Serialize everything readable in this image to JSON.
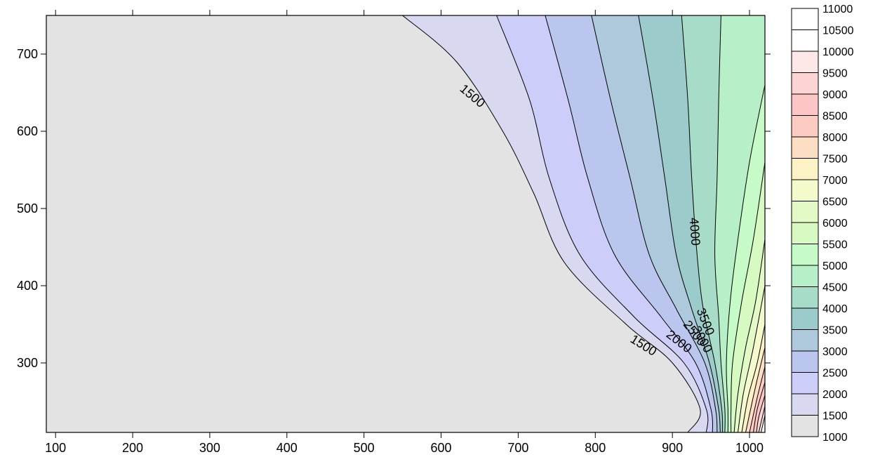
{
  "chart_data": {
    "type": "contour",
    "xlim": [
      88,
      1020
    ],
    "ylim": [
      210,
      750
    ],
    "x_ticks": [
      100,
      200,
      300,
      400,
      500,
      600,
      700,
      800,
      900,
      1000
    ],
    "y_ticks": [
      300,
      400,
      500,
      600,
      700
    ],
    "levels": [
      1000,
      1500,
      2000,
      2500,
      3000,
      3500,
      4000,
      4500,
      5000,
      5500,
      6000,
      6500,
      7000,
      7500,
      8000,
      8500,
      9000,
      9500,
      10000,
      10500,
      11000
    ],
    "level_colors": [
      "#e3e3e3",
      "#d8d8f0",
      "#cdcdfa",
      "#bac6ee",
      "#aec8dc",
      "#9ccbcb",
      "#a6dcc8",
      "#b6efc8",
      "#c6fac6",
      "#d7fac2",
      "#e3fac6",
      "#f5facd",
      "#fcf2c6",
      "#fcdec4",
      "#fccbc2",
      "#fcc6c6",
      "#fcd4d4",
      "#fde7e7",
      "#ffffff"
    ],
    "contour_lines": [
      {
        "value": 1500,
        "points": [
          [
            550,
            750
          ],
          [
            620,
            690
          ],
          [
            680,
            600
          ],
          [
            720,
            520
          ],
          [
            760,
            430
          ],
          [
            840,
            350
          ],
          [
            900,
            300
          ],
          [
            936,
            240
          ],
          [
            920,
            210
          ]
        ]
      },
      {
        "value": 2000,
        "points": [
          [
            672,
            750
          ],
          [
            715,
            640
          ],
          [
            740,
            540
          ],
          [
            780,
            440
          ],
          [
            850,
            360
          ],
          [
            915,
            300
          ],
          [
            944,
            240
          ],
          [
            944,
            210
          ]
        ]
      },
      {
        "value": 2500,
        "points": [
          [
            735,
            750
          ],
          [
            765,
            640
          ],
          [
            790,
            540
          ],
          [
            825,
            440
          ],
          [
            885,
            360
          ],
          [
            930,
            300
          ],
          [
            950,
            240
          ],
          [
            952,
            210
          ]
        ]
      },
      {
        "value": 3000,
        "points": [
          [
            795,
            750
          ],
          [
            820,
            640
          ],
          [
            845,
            540
          ],
          [
            870,
            440
          ],
          [
            905,
            370
          ],
          [
            942,
            300
          ],
          [
            956,
            240
          ],
          [
            958,
            210
          ]
        ]
      },
      {
        "value": 3500,
        "points": [
          [
            856,
            750
          ],
          [
            875,
            640
          ],
          [
            890,
            540
          ],
          [
            905,
            440
          ],
          [
            925,
            370
          ],
          [
            948,
            300
          ],
          [
            960,
            240
          ],
          [
            962,
            210
          ]
        ]
      },
      {
        "value": 4000,
        "points": [
          [
            912,
            750
          ],
          [
            920,
            640
          ],
          [
            925,
            540
          ],
          [
            932,
            440
          ],
          [
            940,
            370
          ],
          [
            955,
            300
          ],
          [
            964,
            240
          ],
          [
            965,
            210
          ]
        ]
      },
      {
        "value": 4500,
        "points": [
          [
            963,
            750
          ],
          [
            960,
            640
          ],
          [
            958,
            540
          ],
          [
            955,
            440
          ],
          [
            960,
            360
          ],
          [
            963,
            300
          ],
          [
            968,
            240
          ],
          [
            968,
            210
          ]
        ]
      },
      {
        "value": 5000,
        "points": [
          [
            1020,
            660
          ],
          [
            1000,
            560
          ],
          [
            985,
            460
          ],
          [
            975,
            380
          ],
          [
            970,
            300
          ],
          [
            972,
            240
          ],
          [
            972,
            210
          ]
        ]
      },
      {
        "value": 5500,
        "points": [
          [
            1020,
            560
          ],
          [
            1005,
            460
          ],
          [
            990,
            380
          ],
          [
            978,
            300
          ],
          [
            976,
            240
          ],
          [
            976,
            210
          ]
        ]
      },
      {
        "value": 6000,
        "points": [
          [
            1020,
            460
          ],
          [
            1008,
            380
          ],
          [
            995,
            320
          ],
          [
            985,
            260
          ],
          [
            980,
            210
          ]
        ]
      },
      {
        "value": 6500,
        "points": [
          [
            1020,
            400
          ],
          [
            1005,
            320
          ],
          [
            992,
            260
          ],
          [
            985,
            210
          ]
        ]
      },
      {
        "value": 7000,
        "points": [
          [
            1020,
            350
          ],
          [
            1010,
            300
          ],
          [
            998,
            255
          ],
          [
            990,
            210
          ]
        ]
      },
      {
        "value": 7500,
        "points": [
          [
            1020,
            320
          ],
          [
            1008,
            270
          ],
          [
            995,
            210
          ]
        ]
      },
      {
        "value": 8000,
        "points": [
          [
            1020,
            295
          ],
          [
            1010,
            255
          ],
          [
            1000,
            210
          ]
        ]
      },
      {
        "value": 8500,
        "points": [
          [
            1020,
            275
          ],
          [
            1010,
            240
          ],
          [
            1005,
            210
          ]
        ]
      },
      {
        "value": 9000,
        "points": [
          [
            1020,
            258
          ],
          [
            1012,
            230
          ],
          [
            1009,
            210
          ]
        ]
      },
      {
        "value": 9500,
        "points": [
          [
            1020,
            244
          ],
          [
            1012,
            210
          ]
        ]
      },
      {
        "value": 10000,
        "points": [
          [
            1020,
            232
          ],
          [
            1015,
            210
          ]
        ]
      }
    ],
    "contour_labels": [
      {
        "text": "1500",
        "x": 640,
        "y": 645,
        "angle": 40
      },
      {
        "text": "1500",
        "x": 862,
        "y": 322,
        "angle": 32
      },
      {
        "text": "2000",
        "x": 908,
        "y": 327,
        "angle": 38
      },
      {
        "text": "2500",
        "x": 928,
        "y": 338,
        "angle": 52
      },
      {
        "text": "3000",
        "x": 938,
        "y": 330,
        "angle": 62
      },
      {
        "text": "3500",
        "x": 942,
        "y": 353,
        "angle": 68
      },
      {
        "text": "4000",
        "x": 928,
        "y": 470,
        "angle": 86
      }
    ]
  }
}
